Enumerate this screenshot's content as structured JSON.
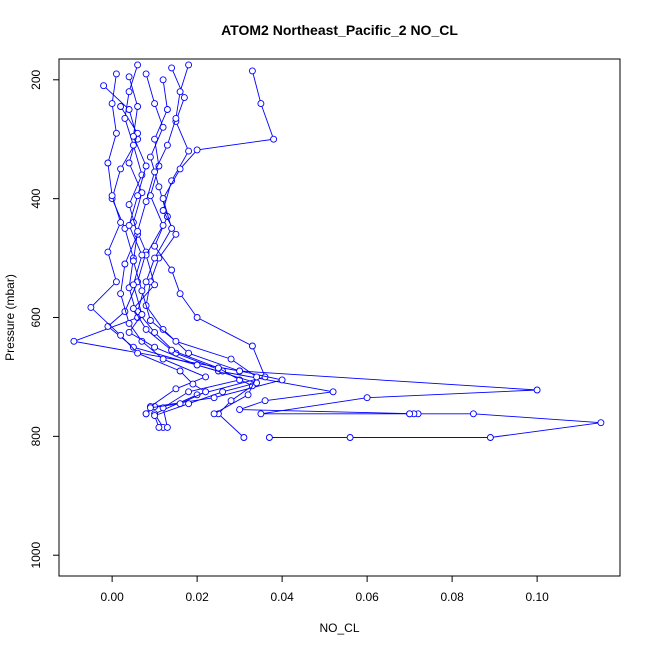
{
  "chart_data": {
    "type": "line",
    "title": "ATOM2 Northeast_Pacific_2 NO_CL",
    "xlabel": "NO_CL",
    "ylabel": "Pressure (mbar)",
    "xlim": [
      -0.0125,
      0.1195
    ],
    "ylim": [
      1035,
      165
    ],
    "y_reversed": true,
    "x_ticks": [
      0.0,
      0.02,
      0.04,
      0.06,
      0.08,
      0.1
    ],
    "x_tick_labels": [
      "0.00",
      "0.02",
      "0.04",
      "0.06",
      "0.08",
      "0.10"
    ],
    "y_ticks": [
      200,
      400,
      600,
      800,
      1000
    ],
    "y_tick_labels": [
      "200",
      "400",
      "600",
      "800",
      "1000"
    ],
    "grid": false,
    "legend": "none",
    "marker": "open-circle",
    "line_color": "#0000ff",
    "series": [
      {
        "points": [
          [
            -0.002,
            210
          ],
          [
            0.004,
            250
          ],
          [
            0.006,
            300
          ],
          [
            0.002,
            350
          ],
          [
            0.0,
            400
          ],
          [
            0.003,
            450
          ],
          [
            0.005,
            500
          ],
          [
            0.004,
            550
          ],
          [
            0.006,
            600
          ],
          [
            -0.009,
            640
          ],
          [
            0.03,
            690
          ],
          [
            0.1,
            722
          ],
          [
            0.06,
            735
          ],
          [
            0.035,
            762
          ],
          [
            0.07,
            762
          ],
          [
            0.085,
            762
          ],
          [
            0.115,
            777
          ],
          [
            0.089,
            802
          ],
          [
            0.056,
            802
          ],
          [
            0.037,
            802
          ]
        ]
      },
      {
        "points": [
          [
            0.002,
            245
          ],
          [
            0.006,
            290
          ],
          [
            0.004,
            340
          ],
          [
            0.007,
            390
          ],
          [
            0.005,
            440
          ],
          [
            0.008,
            490
          ],
          [
            0.006,
            540
          ],
          [
            0.003,
            590
          ],
          [
            -0.001,
            615
          ],
          [
            0.005,
            650
          ],
          [
            0.025,
            690
          ],
          [
            0.052,
            725
          ],
          [
            0.036,
            740
          ],
          [
            0.03,
            755
          ],
          [
            0.072,
            762
          ],
          [
            0.071,
            762
          ],
          [
            0.07,
            762
          ]
        ]
      },
      {
        "points": [
          [
            0.008,
            190
          ],
          [
            0.01,
            240
          ],
          [
            0.012,
            280
          ],
          [
            0.009,
            330
          ],
          [
            0.011,
            380
          ],
          [
            0.013,
            430
          ],
          [
            0.01,
            480
          ],
          [
            0.014,
            520
          ],
          [
            0.016,
            560
          ],
          [
            0.02,
            600
          ],
          [
            0.033,
            648
          ],
          [
            0.036,
            700
          ],
          [
            0.02,
            730
          ],
          [
            0.01,
            762
          ],
          [
            0.012,
            785
          ]
        ]
      },
      {
        "points": [
          [
            0.014,
            180
          ],
          [
            0.017,
            230
          ],
          [
            0.015,
            270
          ],
          [
            0.018,
            320
          ],
          [
            0.014,
            370
          ],
          [
            0.012,
            420
          ],
          [
            0.015,
            460
          ],
          [
            0.011,
            500
          ],
          [
            0.009,
            540
          ],
          [
            0.008,
            580
          ],
          [
            0.012,
            620
          ],
          [
            0.018,
            660
          ],
          [
            0.03,
            690
          ],
          [
            0.04,
            705
          ],
          [
            0.024,
            735
          ],
          [
            0.01,
            750
          ],
          [
            0.008,
            762
          ]
        ]
      },
      {
        "points": [
          [
            0.033,
            185
          ],
          [
            0.035,
            240
          ],
          [
            0.038,
            300
          ],
          [
            0.02,
            318
          ],
          [
            0.016,
            350
          ],
          [
            0.012,
            400
          ],
          [
            0.014,
            450
          ],
          [
            0.01,
            500
          ],
          [
            0.008,
            540
          ],
          [
            0.006,
            590
          ],
          [
            0.01,
            625
          ],
          [
            0.015,
            660
          ],
          [
            0.026,
            690
          ],
          [
            0.033,
            715
          ],
          [
            0.028,
            740
          ],
          [
            0.025,
            762
          ],
          [
            0.031,
            802
          ]
        ]
      },
      {
        "points": [
          [
            0.006,
            175
          ],
          [
            0.004,
            220
          ],
          [
            0.003,
            265
          ],
          [
            0.005,
            310
          ],
          [
            0.007,
            360
          ],
          [
            0.004,
            410
          ],
          [
            0.006,
            460
          ],
          [
            0.003,
            510
          ],
          [
            0.002,
            560
          ],
          [
            0.004,
            610
          ],
          [
            0.007,
            640
          ],
          [
            0.012,
            670
          ],
          [
            0.022,
            700
          ],
          [
            0.015,
            720
          ],
          [
            0.009,
            750
          ],
          [
            0.008,
            762
          ]
        ]
      },
      {
        "points": [
          [
            0.012,
            200
          ],
          [
            0.013,
            250
          ],
          [
            0.01,
            300
          ],
          [
            0.011,
            345
          ],
          [
            0.009,
            395
          ],
          [
            0.012,
            445
          ],
          [
            0.008,
            495
          ],
          [
            0.01,
            545
          ],
          [
            0.005,
            585
          ],
          [
            0.008,
            620
          ],
          [
            0.014,
            655
          ],
          [
            0.025,
            685
          ],
          [
            0.03,
            705
          ],
          [
            0.018,
            725
          ],
          [
            0.012,
            752
          ],
          [
            0.013,
            785
          ]
        ]
      },
      {
        "points": [
          [
            0.001,
            190
          ],
          [
            0.0,
            240
          ],
          [
            0.001,
            290
          ],
          [
            -0.001,
            340
          ],
          [
            0.0,
            395
          ],
          [
            0.002,
            440
          ],
          [
            -0.001,
            490
          ],
          [
            0.001,
            540
          ],
          [
            -0.005,
            583
          ],
          [
            0.002,
            630
          ],
          [
            0.006,
            660
          ],
          [
            0.016,
            690
          ],
          [
            0.019,
            712
          ],
          [
            0.022,
            725
          ],
          [
            0.016,
            745
          ],
          [
            0.009,
            752
          ]
        ]
      },
      {
        "points": [
          [
            0.004,
            195
          ],
          [
            0.006,
            245
          ],
          [
            0.005,
            295
          ],
          [
            0.008,
            345
          ],
          [
            0.006,
            395
          ],
          [
            0.004,
            445
          ],
          [
            0.007,
            495
          ],
          [
            0.005,
            545
          ],
          [
            0.007,
            595
          ],
          [
            0.004,
            625
          ],
          [
            0.01,
            650
          ],
          [
            0.02,
            680
          ],
          [
            0.034,
            710
          ],
          [
            0.026,
            725
          ],
          [
            0.018,
            745
          ],
          [
            0.01,
            765
          ],
          [
            0.011,
            785
          ]
        ]
      },
      {
        "points": [
          [
            0.018,
            175
          ],
          [
            0.016,
            220
          ],
          [
            0.015,
            265
          ],
          [
            0.013,
            310
          ],
          [
            0.01,
            355
          ],
          [
            0.008,
            405
          ],
          [
            0.006,
            455
          ],
          [
            0.005,
            505
          ],
          [
            0.007,
            555
          ],
          [
            0.009,
            605
          ],
          [
            0.015,
            640
          ],
          [
            0.028,
            670
          ],
          [
            0.034,
            700
          ],
          [
            0.032,
            730
          ],
          [
            0.024,
            762
          ]
        ]
      }
    ]
  }
}
